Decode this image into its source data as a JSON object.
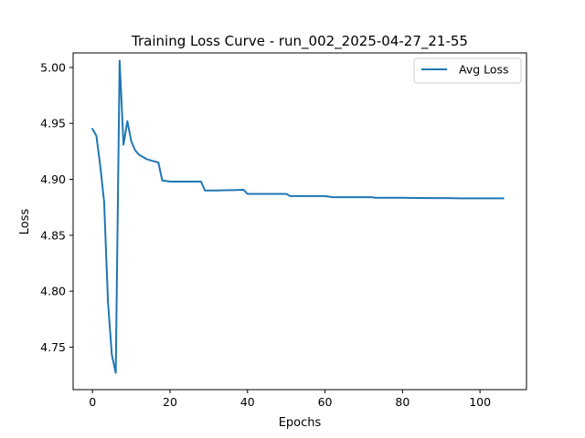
{
  "chart_data": {
    "type": "line",
    "title": "Training Loss Curve - run_002_2025-04-27_21-55",
    "xlabel": "Epochs",
    "ylabel": "Loss",
    "xlim": [
      -5,
      112
    ],
    "ylim": [
      4.712,
      5.013
    ],
    "xticks": [
      0,
      20,
      40,
      60,
      80,
      100
    ],
    "yticks": [
      4.75,
      4.8,
      4.85,
      4.9,
      4.95,
      5.0
    ],
    "ytick_labels": [
      "4.75",
      "4.80",
      "4.85",
      "4.90",
      "4.95",
      "5.00"
    ],
    "grid": false,
    "legend_position": "top-right",
    "series": [
      {
        "name": "Avg Loss",
        "color": "#1f77b4",
        "x": [
          0,
          1,
          2,
          3,
          4,
          5,
          6,
          7,
          8,
          9,
          10,
          11,
          12,
          13,
          14,
          15,
          16,
          17,
          18,
          19,
          20,
          22,
          24,
          26,
          28,
          29,
          30,
          32,
          34,
          36,
          38,
          39,
          40,
          42,
          44,
          46,
          48,
          50,
          51,
          52,
          54,
          56,
          58,
          60,
          61,
          62,
          64,
          66,
          68,
          70,
          72,
          73,
          76,
          80,
          84,
          88,
          92,
          95,
          98,
          102,
          106
        ],
        "y": [
          4.945,
          4.939,
          4.912,
          4.88,
          4.79,
          4.743,
          4.727,
          5.006,
          4.931,
          4.952,
          4.934,
          4.926,
          4.922,
          4.92,
          4.918,
          4.917,
          4.916,
          4.915,
          4.899,
          4.8985,
          4.898,
          4.898,
          4.898,
          4.898,
          4.898,
          4.89,
          4.89,
          4.89,
          4.8902,
          4.8903,
          4.8905,
          4.8906,
          4.887,
          4.887,
          4.887,
          4.887,
          4.887,
          4.887,
          4.885,
          4.885,
          4.885,
          4.885,
          4.885,
          4.885,
          4.8845,
          4.884,
          4.884,
          4.884,
          4.884,
          4.884,
          4.884,
          4.8835,
          4.8835,
          4.8835,
          4.8833,
          4.8832,
          4.8832,
          4.883,
          4.883,
          4.883,
          4.883
        ]
      }
    ]
  }
}
